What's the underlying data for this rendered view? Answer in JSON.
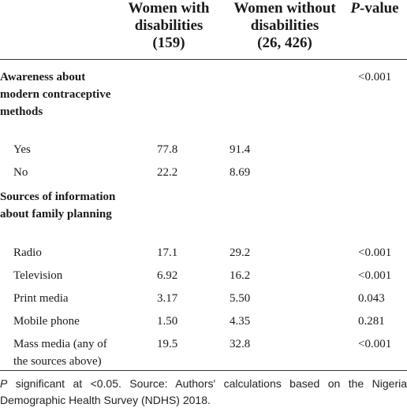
{
  "header": {
    "col1": [
      "Women with",
      "disabilities",
      "(159)"
    ],
    "col2": [
      "Women without",
      "disabilities",
      "(26, 426)"
    ],
    "col3_italic": "P",
    "col3_rest": "-value"
  },
  "sections": [
    {
      "label": "Awareness about modern contraceptive methods",
      "pvalue": "<0.001",
      "rows": [
        {
          "label": "Yes",
          "v1": "77.8",
          "v2": "91.4",
          "pvalue": ""
        },
        {
          "label": "No",
          "v1": "22.2",
          "v2": "8.69",
          "pvalue": ""
        }
      ]
    },
    {
      "label": "Sources of information about family planning",
      "pvalue": "",
      "rows": [
        {
          "label": "Radio",
          "v1": "17.1",
          "v2": "29.2",
          "pvalue": "<0.001"
        },
        {
          "label": "Television",
          "v1": "6.92",
          "v2": "16.2",
          "pvalue": "<0.001"
        },
        {
          "label": "Print media",
          "v1": "3.17",
          "v2": "5.50",
          "pvalue": "0.043"
        },
        {
          "label": "Mobile phone",
          "v1": "1.50",
          "v2": "4.35",
          "pvalue": "0.281"
        },
        {
          "label": "Mass media (any of the sources above)",
          "v1": "19.5",
          "v2": "32.8",
          "pvalue": "<0.001"
        }
      ]
    }
  ],
  "footnote": {
    "italic": "P",
    "text": " significant at <0.05. Source: Authors' calculations based on the Nigeria Demographic Health Survey (NDHS) 2018."
  }
}
